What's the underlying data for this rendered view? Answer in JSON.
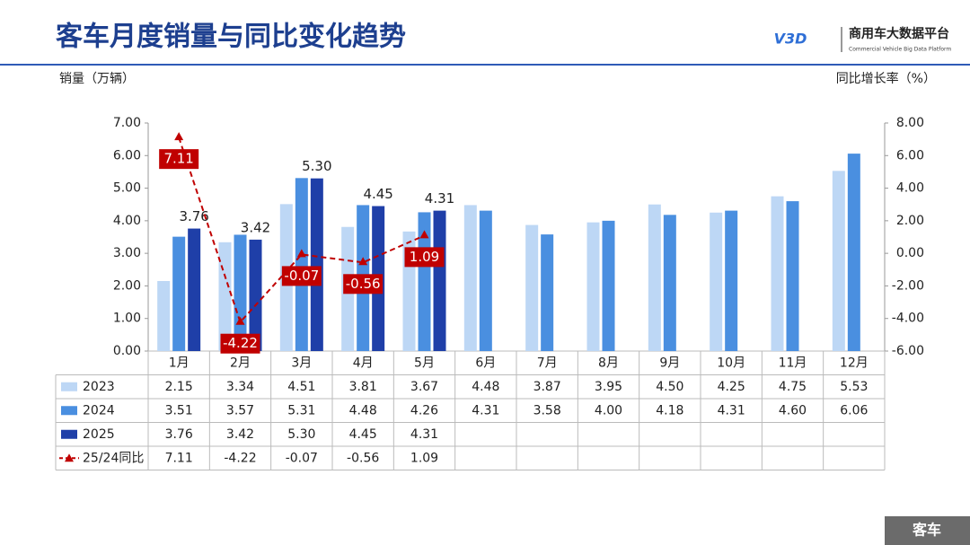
{
  "chart_data": {
    "type": "bar",
    "title": "客车月度销量与同比变化趋势",
    "brand": "商用车大数据平台",
    "brand_sub": "Commercial Vehicle Big Data Platform",
    "logo": "V3D",
    "footer": "客车",
    "y_label": "销量（万辆）",
    "y2_label": "同比增长率（%）",
    "categories": [
      "1月",
      "2月",
      "3月",
      "4月",
      "5月",
      "6月",
      "7月",
      "8月",
      "9月",
      "10月",
      "11月",
      "12月"
    ],
    "ylim": [
      0,
      7
    ],
    "yticks": [
      {
        "value": 0,
        "label": "0.00"
      },
      {
        "value": 1,
        "label": "1.00"
      },
      {
        "value": 2,
        "label": "2.00"
      },
      {
        "value": 3,
        "label": "3.00"
      },
      {
        "value": 4,
        "label": "4.00"
      },
      {
        "value": 5,
        "label": "5.00"
      },
      {
        "value": 6,
        "label": "6.00"
      },
      {
        "value": 7,
        "label": "7.00"
      }
    ],
    "y2lim": [
      -6,
      8
    ],
    "y2ticks": [
      {
        "value": -6,
        "label": "-6.00"
      },
      {
        "value": -4,
        "label": "-4.00"
      },
      {
        "value": -2,
        "label": "-2.00"
      },
      {
        "value": 0,
        "label": "0.00"
      },
      {
        "value": 2,
        "label": "2.00"
      },
      {
        "value": 4,
        "label": "4.00"
      },
      {
        "value": 6,
        "label": "6.00"
      },
      {
        "value": 8,
        "label": "8.00"
      }
    ],
    "series": [
      {
        "name": "2023",
        "color": "#bdd7f5",
        "values": [
          2.15,
          3.34,
          4.51,
          3.81,
          3.67,
          4.48,
          3.87,
          3.95,
          4.5,
          4.25,
          4.75,
          5.53
        ],
        "value_labels": [
          "2.15",
          "3.34",
          "4.51",
          "3.81",
          "3.67",
          "4.48",
          "3.87",
          "3.95",
          "4.50",
          "4.25",
          "4.75",
          "5.53"
        ]
      },
      {
        "name": "2024",
        "color": "#4a8fe0",
        "values": [
          3.51,
          3.57,
          5.31,
          4.48,
          4.26,
          4.31,
          3.58,
          4.0,
          4.18,
          4.31,
          4.6,
          6.06
        ],
        "value_labels": [
          "3.51",
          "3.57",
          "5.31",
          "4.48",
          "4.26",
          "4.31",
          "3.58",
          "4.00",
          "4.18",
          "4.31",
          "4.60",
          "6.06"
        ]
      },
      {
        "name": "2025",
        "color": "#1f3fa8",
        "values": [
          3.76,
          3.42,
          5.3,
          4.45,
          4.31,
          null,
          null,
          null,
          null,
          null,
          null,
          null
        ],
        "value_labels": [
          "3.76",
          "3.42",
          "5.30",
          "4.45",
          "4.31",
          null,
          null,
          null,
          null,
          null,
          null,
          null
        ],
        "show_labels": true
      },
      {
        "name": "25/24同比",
        "color": "#c00000",
        "type": "line",
        "axis": "y2",
        "values": [
          7.11,
          -4.22,
          -0.07,
          -0.56,
          1.09,
          null,
          null,
          null,
          null,
          null,
          null,
          null
        ],
        "value_labels": [
          "7.11",
          "-4.22",
          "-0.07",
          "-0.56",
          "1.09",
          null,
          null,
          null,
          null,
          null,
          null,
          null
        ]
      }
    ]
  }
}
